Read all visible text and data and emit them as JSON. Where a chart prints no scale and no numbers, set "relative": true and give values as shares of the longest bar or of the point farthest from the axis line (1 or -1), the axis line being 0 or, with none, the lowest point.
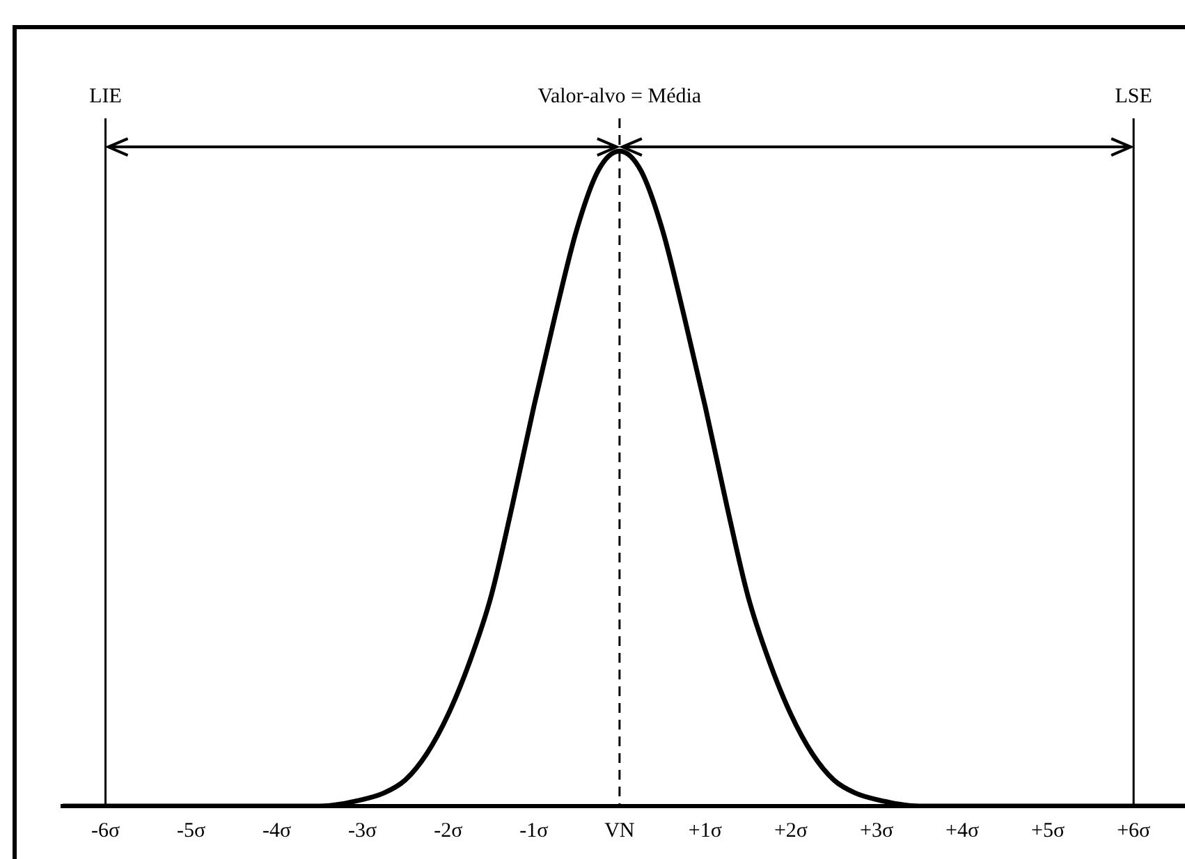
{
  "chart_data": {
    "type": "line",
    "relative": true,
    "x": [
      -6.5,
      -4,
      -3.5,
      -3,
      -2.75,
      -2.5,
      -2.25,
      -2,
      -1.75,
      -1.5,
      -1.25,
      -1,
      -0.75,
      -0.5,
      -0.25,
      0,
      0.25,
      0.5,
      0.75,
      1,
      1.25,
      1.5,
      1.75,
      2,
      2.25,
      2.5,
      2.75,
      3,
      3.5,
      4,
      6.6
    ],
    "series": [
      {
        "color": "#000000",
        "values": [
          0,
          0,
          0,
          0.01,
          0.02,
          0.04,
          0.08,
          0.14,
          0.22,
          0.32,
          0.46,
          0.61,
          0.75,
          0.88,
          0.97,
          1,
          0.97,
          0.88,
          0.75,
          0.61,
          0.46,
          0.32,
          0.22,
          0.14,
          0.08,
          0.04,
          0.02,
          0.01,
          0,
          0,
          0
        ]
      }
    ],
    "xlim": [
      -6.5,
      6.6
    ],
    "xticks": [
      {
        "value": -6,
        "label": "-6σ"
      },
      {
        "value": -5,
        "label": "-5σ"
      },
      {
        "value": -4,
        "label": "-4σ"
      },
      {
        "value": -3,
        "label": "-3σ"
      },
      {
        "value": -2,
        "label": "-2σ"
      },
      {
        "value": -1,
        "label": "-1σ"
      },
      {
        "value": 0,
        "label": "VN"
      },
      {
        "value": 1,
        "label": "+1σ"
      },
      {
        "value": 2,
        "label": "+2σ"
      },
      {
        "value": 3,
        "label": "+3σ"
      },
      {
        "value": 4,
        "label": "+4σ"
      },
      {
        "value": 5,
        "label": "+5σ"
      },
      {
        "value": 6,
        "label": "+6σ"
      }
    ],
    "ref_lines": [
      {
        "axis": "x",
        "value": -6,
        "label": "LIE",
        "color": "#000000"
      },
      {
        "axis": "x",
        "value": 0,
        "label": "Valor-alvo = Média",
        "color": "#000000",
        "line_style": "dashed"
      },
      {
        "axis": "x",
        "value": 6,
        "label": "LSE",
        "color": "#000000"
      }
    ],
    "grid": false,
    "legend": false,
    "marker": "none",
    "line_style": "solid"
  }
}
